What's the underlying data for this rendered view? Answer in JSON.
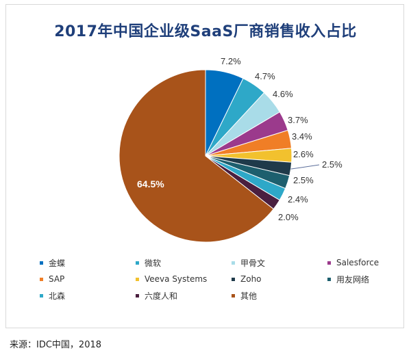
{
  "title": "2017年中国企业级SaaS厂商销售收入占比",
  "source": "来源：IDC中国，2018",
  "chart_data": {
    "type": "pie",
    "title": "2017年中国企业级SaaS厂商销售收入占比",
    "categories": [
      "金蝶",
      "微软",
      "甲骨文",
      "Salesforce",
      "SAP",
      "Veeva Systems",
      "Zoho",
      "用友网络",
      "北森",
      "六度人和",
      "其他"
    ],
    "values": [
      7.2,
      4.7,
      4.6,
      3.7,
      3.4,
      2.6,
      2.5,
      2.5,
      2.4,
      2.0,
      64.5
    ],
    "value_labels": [
      "7.2%",
      "4.7%",
      "4.6%",
      "3.7%",
      "3.4%",
      "2.6%",
      "2.5%",
      "2.5%",
      "2.4%",
      "2.0%",
      "64.5%"
    ],
    "colors": [
      "#0070c0",
      "#2ea8c8",
      "#a9dce8",
      "#9b3a8c",
      "#f07e26",
      "#f2c12e",
      "#1f3a4a",
      "#1d5f6e",
      "#2ea8c8",
      "#4a1f3f",
      "#a8531a"
    ],
    "legend": "bottom",
    "start_angle_deg": 0
  }
}
